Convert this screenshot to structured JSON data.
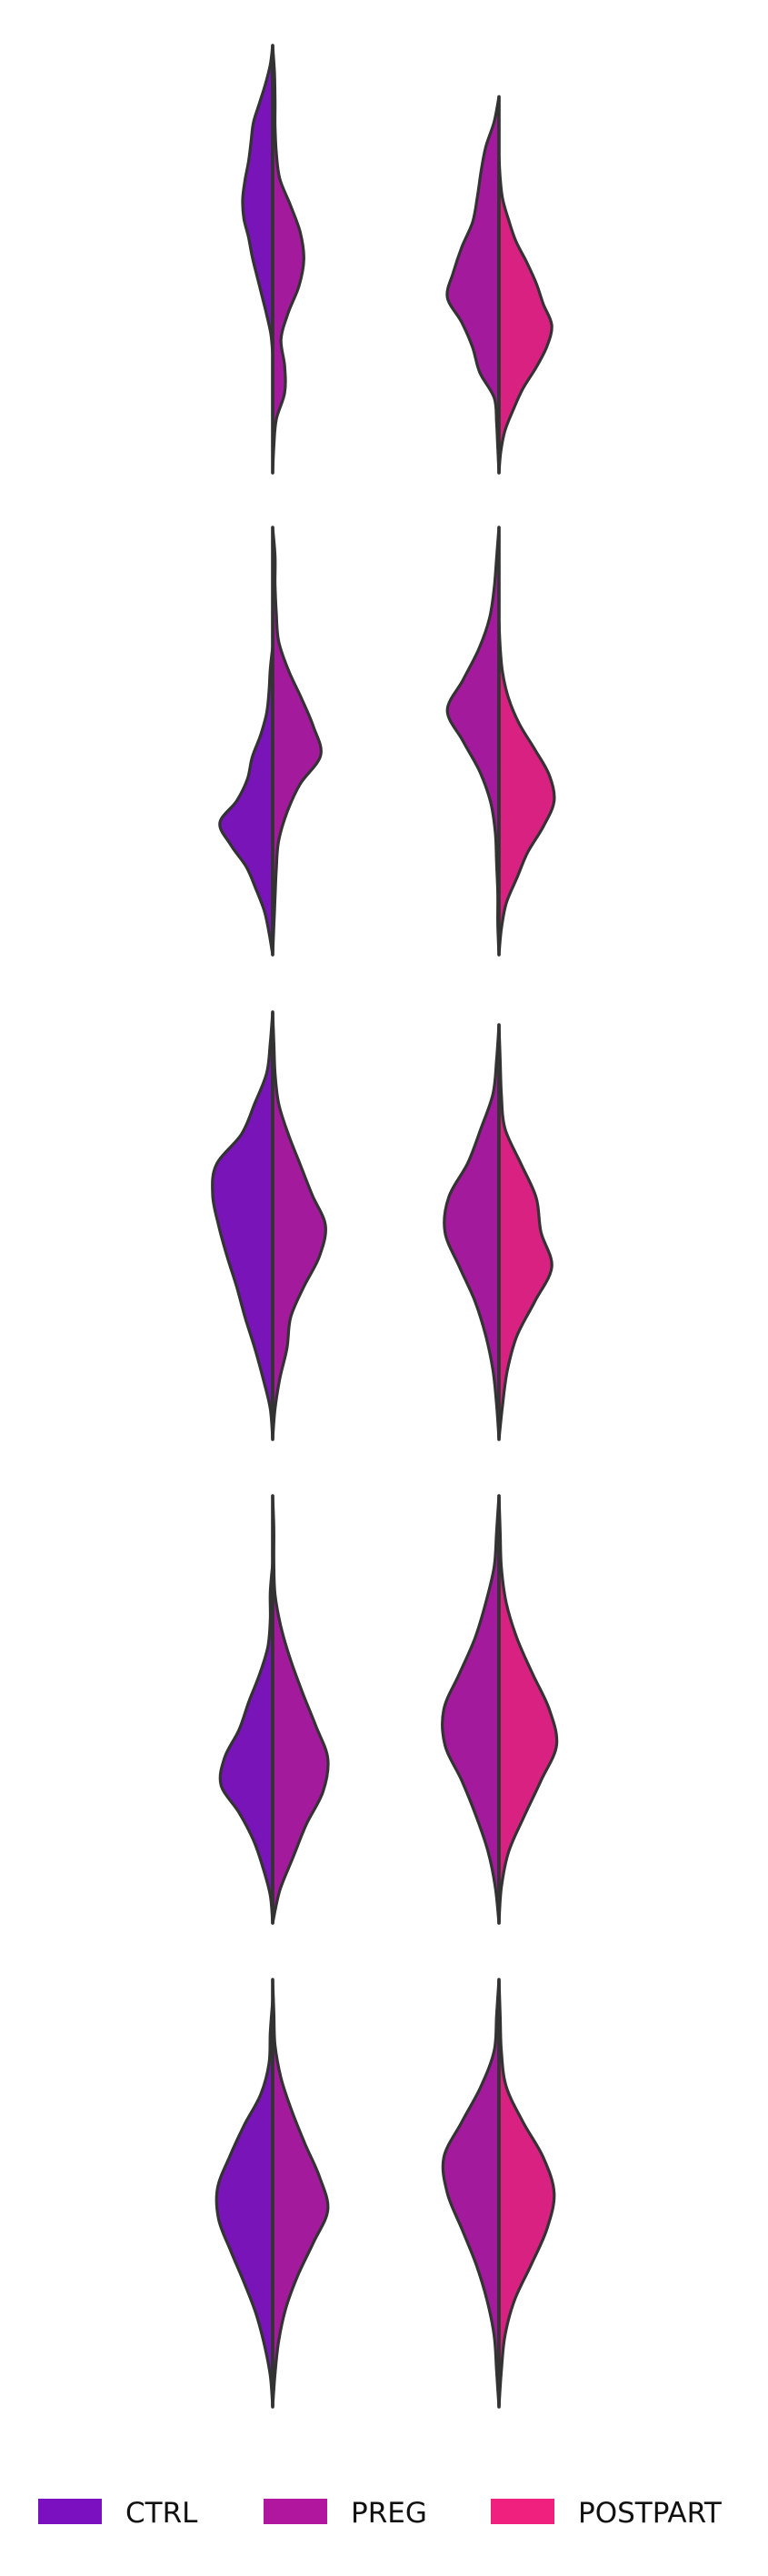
{
  "chart_data": {
    "type": "split-violin",
    "title": "",
    "xlabel": "",
    "ylabel": "",
    "grid": false,
    "legend_placement": "bottom-center",
    "series": [
      {
        "name": "CTRL",
        "color": "#7a10c0"
      },
      {
        "name": "PREG",
        "color": "#b0179e"
      },
      {
        "name": "POSTPART",
        "color": "#f0207e"
      }
    ],
    "panels": [
      {
        "violins": [
          {
            "left": {
              "series": "CTRL",
              "min": 0.28,
              "max": 1.0,
              "profile": [
                0.0,
                0.04,
                0.12,
                0.22,
                0.32,
                0.36,
                0.4,
                0.46,
                0.5,
                0.48,
                0.4,
                0.34,
                0.26,
                0.18,
                0.1,
                0.03,
                0.0
              ]
            },
            "right": {
              "series": "PREG",
              "min": 0.0,
              "max": 1.0,
              "profile": [
                0.0,
                0.03,
                0.04,
                0.04,
                0.06,
                0.12,
                0.3,
                0.46,
                0.52,
                0.44,
                0.26,
                0.14,
                0.2,
                0.2,
                0.06,
                0.02,
                0.0
              ]
            }
          },
          {
            "left": {
              "series": "PREG",
              "min": 0.0,
              "max": 0.88,
              "profile": [
                0.0,
                0.08,
                0.22,
                0.3,
                0.36,
                0.44,
                0.62,
                0.76,
                0.86,
                0.62,
                0.44,
                0.32,
                0.08,
                0.04,
                0.02,
                0.0
              ]
            },
            "right": {
              "series": "POSTPART",
              "min": 0.0,
              "max": 0.74,
              "profile": [
                0.0,
                0.02,
                0.06,
                0.16,
                0.28,
                0.46,
                0.62,
                0.74,
                0.88,
                0.8,
                0.62,
                0.4,
                0.24,
                0.1,
                0.03,
                0.0
              ]
            }
          }
        ]
      },
      {
        "violins": [
          {
            "left": {
              "series": "CTRL",
              "min": 0.0,
              "max": 0.72,
              "profile": [
                0.0,
                0.04,
                0.06,
                0.1,
                0.2,
                0.34,
                0.42,
                0.6,
                0.88,
                0.7,
                0.44,
                0.28,
                0.14,
                0.06,
                0.0
              ]
            },
            "right": {
              "series": "PREG",
              "min": 0.0,
              "max": 1.0,
              "profile": [
                0.0,
                0.04,
                0.04,
                0.06,
                0.1,
                0.26,
                0.48,
                0.68,
                0.8,
                0.46,
                0.24,
                0.1,
                0.06,
                0.04,
                0.02,
                0.0
              ]
            }
          },
          {
            "left": {
              "series": "PREG",
              "min": 0.0,
              "max": 1.0,
              "profile": [
                0.0,
                0.04,
                0.08,
                0.16,
                0.34,
                0.6,
                0.86,
                0.6,
                0.32,
                0.14,
                0.06,
                0.04,
                0.02,
                0.02,
                0.0
              ]
            },
            "right": {
              "series": "POSTPART",
              "min": 0.0,
              "max": 0.78,
              "profile": [
                0.0,
                0.02,
                0.06,
                0.16,
                0.34,
                0.6,
                0.84,
                0.92,
                0.74,
                0.48,
                0.3,
                0.12,
                0.04,
                0.0
              ]
            }
          }
        ]
      },
      {
        "violins": [
          {
            "left": {
              "series": "CTRL",
              "min": 0.0,
              "max": 1.0,
              "profile": [
                0.0,
                0.04,
                0.1,
                0.3,
                0.52,
                0.94,
                1.0,
                0.9,
                0.76,
                0.6,
                0.46,
                0.3,
                0.16,
                0.04,
                0.0
              ]
            },
            "right": {
              "series": "PREG",
              "min": 0.0,
              "max": 1.0,
              "profile": [
                0.0,
                0.02,
                0.04,
                0.1,
                0.26,
                0.46,
                0.66,
                0.88,
                0.78,
                0.52,
                0.3,
                0.24,
                0.12,
                0.04,
                0.0
              ]
            }
          },
          {
            "left": {
              "series": "PREG",
              "min": 0.0,
              "max": 0.97,
              "profile": [
                0.0,
                0.04,
                0.1,
                0.3,
                0.52,
                0.84,
                0.9,
                0.66,
                0.4,
                0.22,
                0.1,
                0.04,
                0.0
              ]
            },
            "right": {
              "series": "POSTPART",
              "min": 0.0,
              "max": 0.97,
              "profile": [
                0.0,
                0.02,
                0.04,
                0.1,
                0.36,
                0.62,
                0.7,
                0.88,
                0.6,
                0.3,
                0.14,
                0.06,
                0.0
              ]
            }
          }
        ]
      },
      {
        "violins": [
          {
            "left": {
              "series": "CTRL",
              "min": 0.0,
              "max": 0.84,
              "profile": [
                0.0,
                0.04,
                0.04,
                0.08,
                0.22,
                0.4,
                0.56,
                0.8,
                0.86,
                0.56,
                0.32,
                0.16,
                0.04,
                0.0
              ]
            },
            "right": {
              "series": "PREG",
              "min": 0.0,
              "max": 1.0,
              "profile": [
                0.0,
                0.02,
                0.02,
                0.04,
                0.14,
                0.3,
                0.5,
                0.72,
                0.92,
                0.84,
                0.56,
                0.34,
                0.12,
                0.0
              ]
            }
          },
          {
            "left": {
              "series": "PREG",
              "min": 0.0,
              "max": 1.0,
              "profile": [
                0.0,
                0.04,
                0.08,
                0.22,
                0.4,
                0.66,
                0.92,
                0.9,
                0.62,
                0.38,
                0.18,
                0.06,
                0.0
              ]
            },
            "right": {
              "series": "POSTPART",
              "min": 0.0,
              "max": 1.0,
              "profile": [
                0.0,
                0.02,
                0.04,
                0.12,
                0.3,
                0.56,
                0.84,
                0.96,
                0.7,
                0.42,
                0.16,
                0.04,
                0.0
              ]
            }
          }
        ]
      },
      {
        "violins": [
          {
            "left": {
              "series": "CTRL",
              "min": 0.0,
              "max": 0.95,
              "profile": [
                0.0,
                0.04,
                0.06,
                0.2,
                0.48,
                0.72,
                0.92,
                0.9,
                0.7,
                0.48,
                0.28,
                0.14,
                0.04,
                0.0
              ]
            },
            "right": {
              "series": "PREG",
              "min": 0.0,
              "max": 1.0,
              "profile": [
                0.0,
                0.02,
                0.04,
                0.14,
                0.32,
                0.54,
                0.78,
                0.92,
                0.68,
                0.42,
                0.22,
                0.1,
                0.04,
                0.0
              ]
            }
          },
          {
            "left": {
              "series": "PREG",
              "min": 0.0,
              "max": 1.0,
              "profile": [
                0.0,
                0.04,
                0.08,
                0.3,
                0.62,
                0.92,
                0.86,
                0.62,
                0.38,
                0.2,
                0.08,
                0.04,
                0.0
              ]
            },
            "right": {
              "series": "POSTPART",
              "min": 0.0,
              "max": 1.0,
              "profile": [
                0.0,
                0.02,
                0.04,
                0.12,
                0.4,
                0.74,
                0.92,
                0.8,
                0.54,
                0.26,
                0.1,
                0.04,
                0.0
              ]
            }
          }
        ]
      }
    ]
  }
}
